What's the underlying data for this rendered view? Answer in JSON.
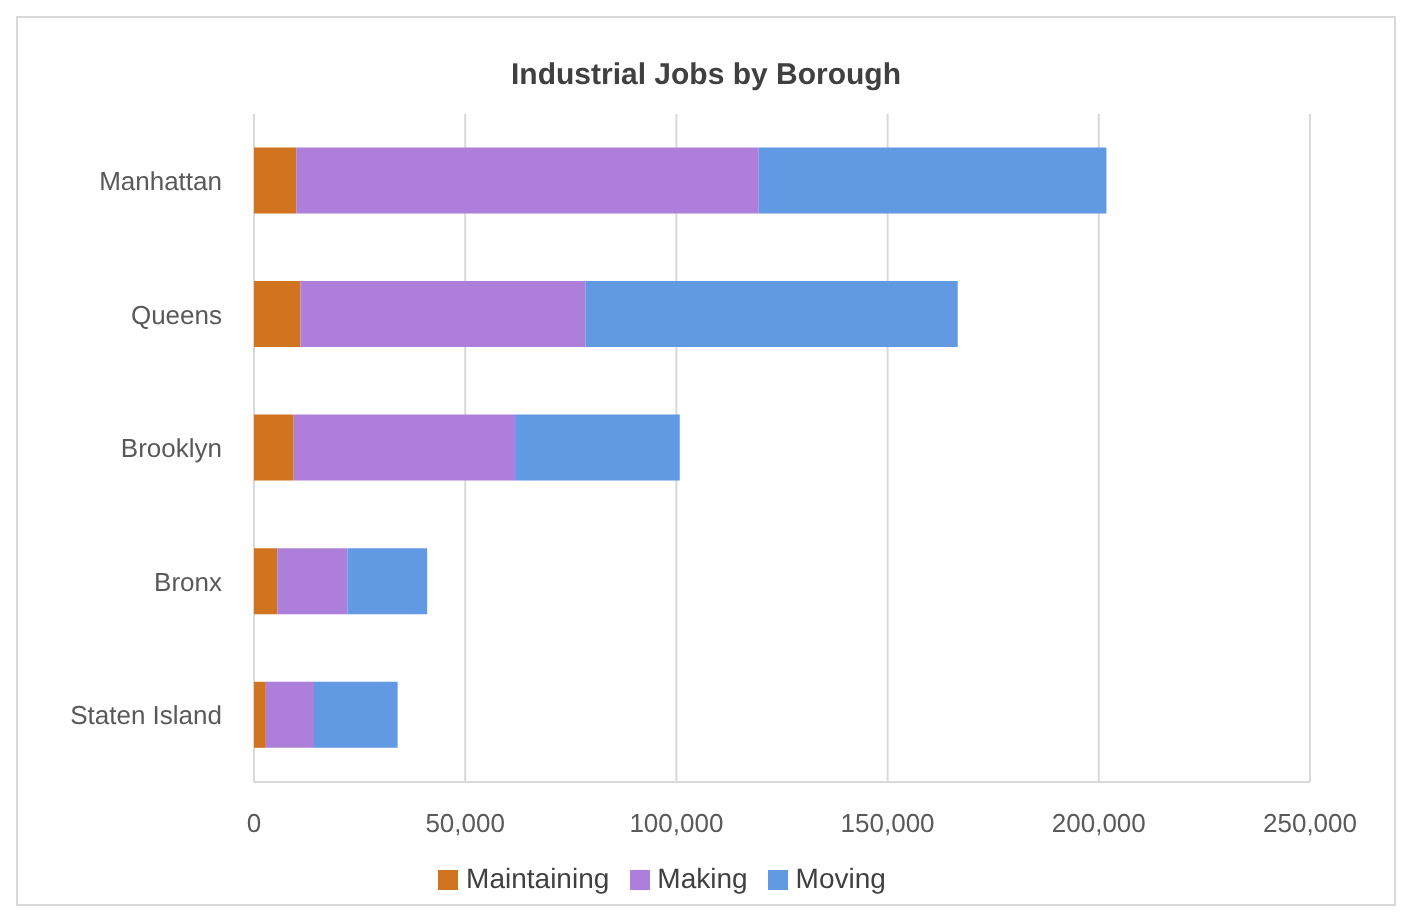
{
  "chart_data": {
    "type": "bar",
    "title": "Industrial Jobs by Borough",
    "orientation": "horizontal",
    "stacked": true,
    "categories": [
      "Manhattan",
      "Queens",
      "Brooklyn",
      "Bronx",
      "Staten Island"
    ],
    "series": [
      {
        "name": "Maintaining",
        "color": "#d0741f",
        "values": [
          10000,
          11000,
          9400,
          5500,
          2800
        ]
      },
      {
        "name": "Making",
        "color": "#ad7fdb",
        "values": [
          109500,
          67500,
          52400,
          16600,
          11400
        ]
      },
      {
        "name": "Moving",
        "color": "#6199e2",
        "values": [
          82300,
          88100,
          39000,
          18900,
          19800
        ]
      }
    ],
    "xlim": [
      0,
      250000
    ],
    "xticks": [
      {
        "value": 0,
        "label": "0"
      },
      {
        "value": 50000,
        "label": "50,000"
      },
      {
        "value": 100000,
        "label": "100,000"
      },
      {
        "value": 150000,
        "label": "150,000"
      },
      {
        "value": 200000,
        "label": "200,000"
      },
      {
        "value": 250000,
        "label": "250,000"
      }
    ],
    "grid": "x",
    "legend": "bottom"
  }
}
